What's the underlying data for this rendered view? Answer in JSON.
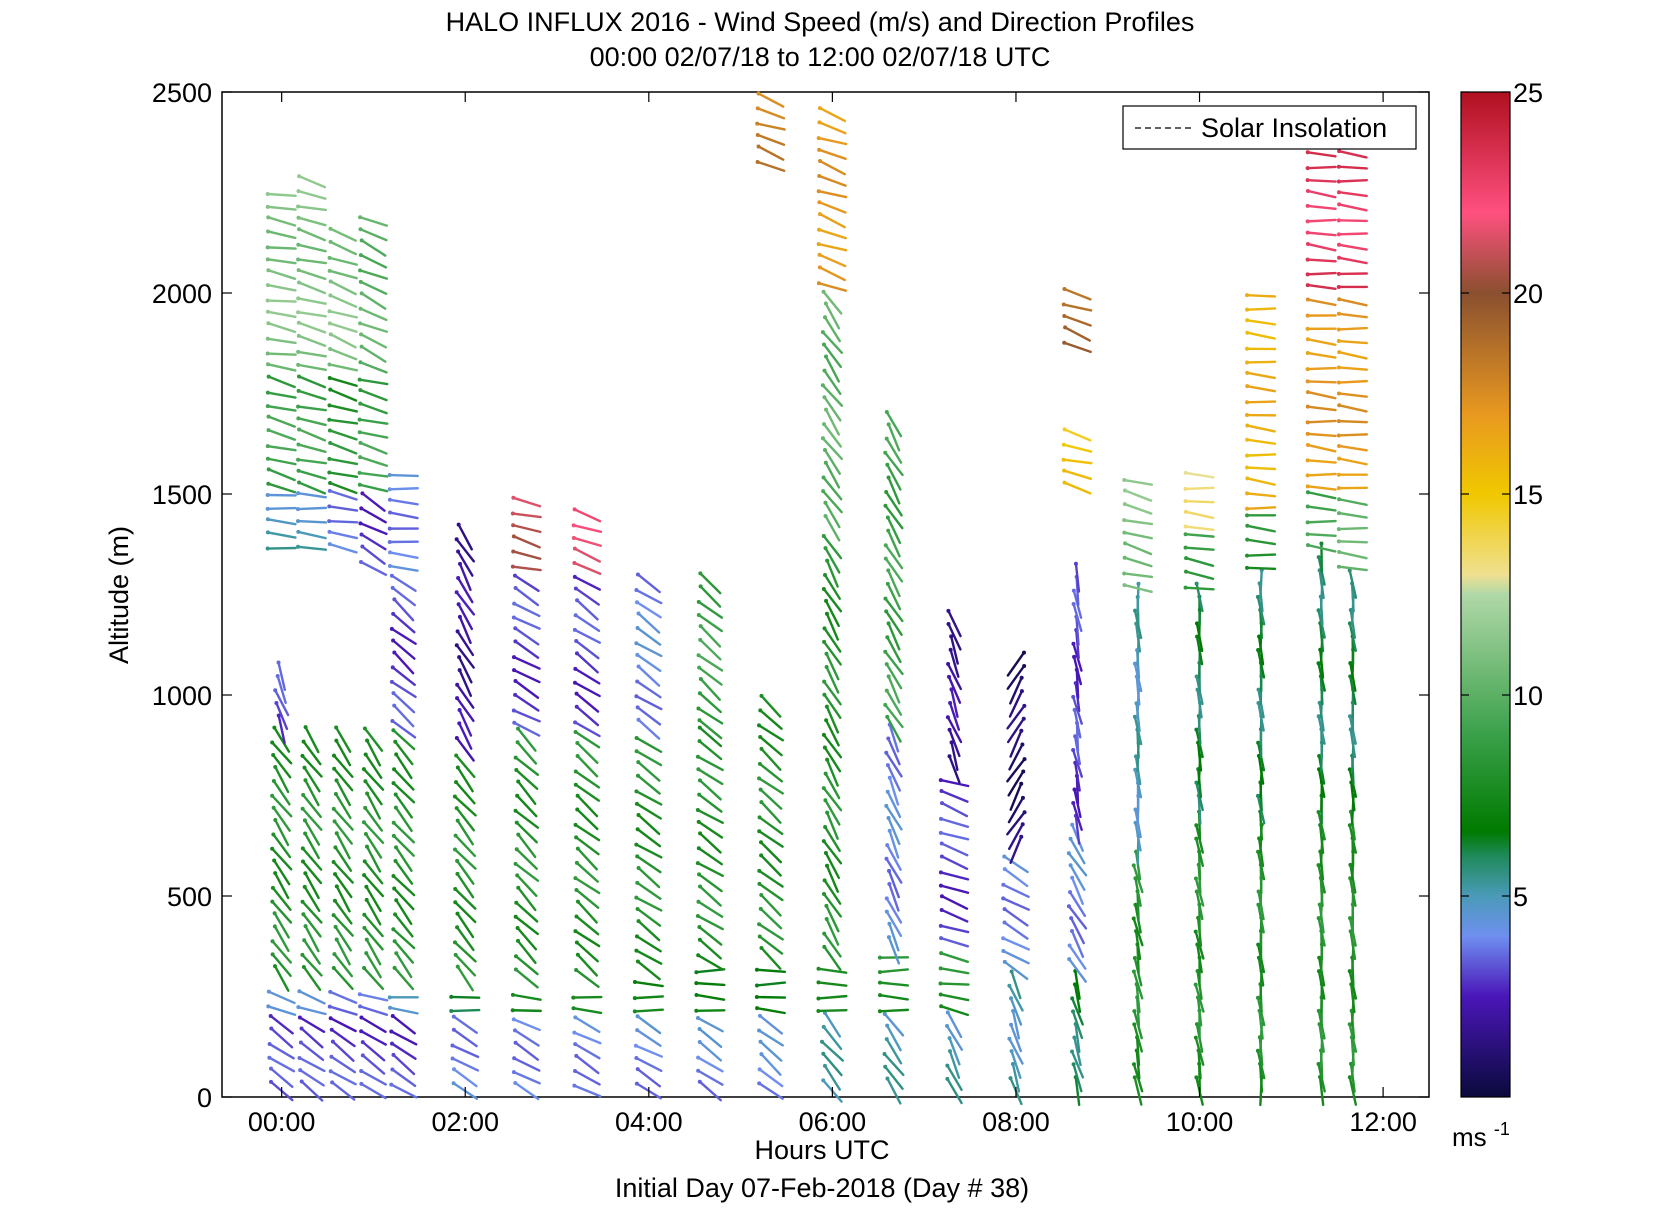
{
  "chart_data": {
    "type": "wind-barb-profile",
    "title": "HALO INFLUX 2016 - Wind Speed (m/s) and Direction Profiles",
    "subtitle": "00:00 02/07/18 to 12:00 02/07/18  UTC",
    "xlabel": "Hours UTC",
    "xlabel2": "Initial Day 07-Feb-2018 (Day # 38)",
    "ylabel": "Altitude (m)",
    "xlim_hours": [
      -0.65,
      12.5
    ],
    "ylim": [
      0,
      2500
    ],
    "x_ticks": [
      {
        "value": 0,
        "label": "00:00"
      },
      {
        "value": 2,
        "label": "02:00"
      },
      {
        "value": 4,
        "label": "04:00"
      },
      {
        "value": 6,
        "label": "06:00"
      },
      {
        "value": 8,
        "label": "08:00"
      },
      {
        "value": 10,
        "label": "10:00"
      },
      {
        "value": 12,
        "label": "12:00"
      }
    ],
    "y_ticks": [
      {
        "value": 0,
        "label": "0"
      },
      {
        "value": 500,
        "label": "500"
      },
      {
        "value": 1000,
        "label": "1000"
      },
      {
        "value": 1500,
        "label": "1500"
      },
      {
        "value": 2000,
        "label": "2000"
      },
      {
        "value": 2500,
        "label": "2500"
      }
    ],
    "legend": {
      "entry": "Solar Insolation",
      "placement": "top-right",
      "style": "dashed"
    },
    "colorbar": {
      "range": [
        0,
        25
      ],
      "ticks": [
        {
          "value": 5,
          "label": "5"
        },
        {
          "value": 10,
          "label": "10"
        },
        {
          "value": 15,
          "label": "15"
        },
        {
          "value": 20,
          "label": "20"
        },
        {
          "value": 25,
          "label": "25"
        }
      ],
      "unit_label": "ms",
      "unit_exponent": "-1",
      "color_stops": [
        {
          "value": 0,
          "color": "#0a0a3c"
        },
        {
          "value": 2.5,
          "color": "#4a16b8"
        },
        {
          "value": 4,
          "color": "#6f8ff0"
        },
        {
          "value": 5,
          "color": "#4a9ab8"
        },
        {
          "value": 6,
          "color": "#1f8a5a"
        },
        {
          "value": 6.6,
          "color": "#007a00"
        },
        {
          "value": 9,
          "color": "#3aa04a"
        },
        {
          "value": 12.5,
          "color": "#b0d8a8"
        },
        {
          "value": 13,
          "color": "#f0e090"
        },
        {
          "value": 15,
          "color": "#f0c800"
        },
        {
          "value": 17,
          "color": "#e89820"
        },
        {
          "value": 20,
          "color": "#8a5030"
        },
        {
          "value": 22,
          "color": "#ff5080"
        },
        {
          "value": 25,
          "color": "#b01020"
        }
      ]
    },
    "profiles_note_units": "each profile: time in hours UTC, barb altitudes in m, wind speed in m/s",
    "profiles": [
      {
        "t": 0.0,
        "top": 2270,
        "bands": [
          [
            0,
            200,
            3,
            -55
          ],
          [
            200,
            280,
            5,
            -65
          ],
          [
            280,
            900,
            8,
            -35
          ],
          [
            900,
            1050,
            3,
            -20
          ],
          [
            1350,
            1500,
            5,
            -85
          ],
          [
            1500,
            1800,
            9,
            -75
          ],
          [
            1800,
            2270,
            11,
            -80
          ]
        ]
      },
      {
        "t": 0.33,
        "top": 2280,
        "bands": [
          [
            0,
            200,
            3,
            -55
          ],
          [
            200,
            280,
            5,
            -70
          ],
          [
            280,
            900,
            8,
            -35
          ],
          [
            1350,
            1500,
            5,
            -85
          ],
          [
            1500,
            1800,
            9,
            -75
          ],
          [
            1800,
            2280,
            11,
            -75
          ]
        ]
      },
      {
        "t": 0.67,
        "top": 2150,
        "bands": [
          [
            0,
            200,
            3,
            -55
          ],
          [
            200,
            280,
            4,
            -75
          ],
          [
            280,
            900,
            8,
            -35
          ],
          [
            1350,
            1500,
            4,
            -80
          ],
          [
            1500,
            1800,
            8,
            -75
          ],
          [
            1800,
            2150,
            11,
            -70
          ]
        ]
      },
      {
        "t": 1.0,
        "top": 2180,
        "bands": [
          [
            0,
            200,
            3,
            -55
          ],
          [
            200,
            280,
            4,
            -80
          ],
          [
            280,
            900,
            8,
            -35
          ],
          [
            1300,
            1500,
            3,
            -60
          ],
          [
            1500,
            1800,
            9,
            -75
          ],
          [
            1800,
            2180,
            10,
            -65
          ]
        ]
      },
      {
        "t": 1.33,
        "top": 1550,
        "bands": [
          [
            0,
            200,
            3,
            -55
          ],
          [
            200,
            280,
            5,
            -85
          ],
          [
            280,
            900,
            8,
            -40
          ],
          [
            900,
            1300,
            3,
            -50
          ],
          [
            1300,
            1550,
            4,
            -85
          ]
        ]
      },
      {
        "t": 2.0,
        "top": 1400,
        "bands": [
          [
            0,
            200,
            4,
            -60
          ],
          [
            200,
            280,
            6,
            -85
          ],
          [
            280,
            850,
            8,
            -40
          ],
          [
            850,
            1400,
            2,
            -30
          ]
        ]
      },
      {
        "t": 2.67,
        "top": 1500,
        "bands": [
          [
            0,
            200,
            4,
            -60
          ],
          [
            200,
            280,
            7,
            -88
          ],
          [
            280,
            900,
            8,
            -45
          ],
          [
            900,
            1300,
            3,
            -60
          ],
          [
            1300,
            1500,
            21,
            -75
          ]
        ]
      },
      {
        "t": 3.33,
        "top": 1450,
        "bands": [
          [
            0,
            200,
            4,
            -60
          ],
          [
            200,
            280,
            7,
            -88
          ],
          [
            280,
            900,
            8,
            -50
          ],
          [
            900,
            1300,
            3,
            -55
          ],
          [
            1300,
            1450,
            22,
            -70
          ]
        ]
      },
      {
        "t": 4.0,
        "top": 1300,
        "bands": [
          [
            0,
            200,
            4,
            -60
          ],
          [
            200,
            300,
            7,
            -88
          ],
          [
            300,
            900,
            8,
            -55
          ],
          [
            900,
            1300,
            4,
            -55
          ]
        ]
      },
      {
        "t": 4.67,
        "top": 1300,
        "bands": [
          [
            0,
            200,
            4,
            -55
          ],
          [
            200,
            320,
            7,
            -88
          ],
          [
            320,
            900,
            8,
            -55
          ],
          [
            900,
            1300,
            9,
            -50
          ]
        ]
      },
      {
        "t": 5.33,
        "top": 2500,
        "bands": [
          [
            0,
            200,
            4,
            -50
          ],
          [
            200,
            330,
            7,
            -88
          ],
          [
            330,
            1000,
            8,
            -50
          ],
          [
            2300,
            2500,
            18,
            -70
          ]
        ]
      },
      {
        "t": 6.0,
        "top": 2450,
        "bands": [
          [
            0,
            200,
            5,
            -40
          ],
          [
            200,
            330,
            8,
            -88
          ],
          [
            330,
            1400,
            8,
            -30
          ],
          [
            1400,
            2000,
            10,
            -35
          ],
          [
            2000,
            2450,
            17,
            -70
          ]
        ]
      },
      {
        "t": 6.67,
        "top": 1700,
        "bands": [
          [
            0,
            200,
            5,
            -35
          ],
          [
            200,
            350,
            8,
            -88
          ],
          [
            350,
            900,
            4,
            -25
          ],
          [
            900,
            1700,
            9,
            -30
          ]
        ]
      },
      {
        "t": 7.33,
        "top": 1200,
        "bands": [
          [
            0,
            200,
            5,
            -25
          ],
          [
            200,
            370,
            8,
            -80
          ],
          [
            370,
            800,
            3,
            -70
          ],
          [
            800,
            1200,
            2,
            -20
          ]
        ]
      },
      {
        "t": 8.0,
        "top": 1100,
        "bands": [
          [
            0,
            300,
            5,
            -20
          ],
          [
            300,
            600,
            4,
            -60
          ],
          [
            600,
            1100,
            1,
            30
          ]
        ]
      },
      {
        "t": 8.67,
        "top": 2000,
        "bands": [
          [
            0,
            300,
            6,
            -15
          ],
          [
            300,
            650,
            4,
            -30
          ],
          [
            650,
            1300,
            3,
            -10
          ],
          [
            1500,
            1650,
            15,
            -75
          ],
          [
            1850,
            2000,
            19,
            -70
          ]
        ]
      },
      {
        "t": 9.33,
        "top": 1550,
        "bands": [
          [
            0,
            600,
            8,
            -10
          ],
          [
            600,
            1250,
            5,
            -5
          ],
          [
            1250,
            1550,
            11,
            -75
          ]
        ]
      },
      {
        "t": 10.0,
        "top": 1550,
        "bands": [
          [
            0,
            700,
            8,
            -8
          ],
          [
            700,
            1250,
            6,
            -5
          ],
          [
            1250,
            1400,
            9,
            -80
          ],
          [
            1400,
            1550,
            13,
            -85
          ]
        ]
      },
      {
        "t": 10.67,
        "top": 2000,
        "bands": [
          [
            0,
            700,
            8,
            -5
          ],
          [
            700,
            1300,
            6,
            -5
          ],
          [
            1300,
            1450,
            8,
            -85
          ],
          [
            1450,
            2000,
            16,
            -85
          ]
        ]
      },
      {
        "t": 11.33,
        "top": 2400,
        "bands": [
          [
            0,
            700,
            8,
            -5
          ],
          [
            700,
            1350,
            6,
            -5
          ],
          [
            1350,
            1500,
            9,
            -85
          ],
          [
            1500,
            2000,
            17,
            -85
          ],
          [
            2000,
            2400,
            23,
            -85
          ]
        ]
      },
      {
        "t": 11.67,
        "top": 2400,
        "bands": [
          [
            0,
            700,
            8,
            -5
          ],
          [
            700,
            1300,
            6,
            -5
          ],
          [
            1300,
            1500,
            10,
            -85
          ],
          [
            1500,
            2000,
            17,
            -85
          ],
          [
            2000,
            2400,
            23,
            -85
          ]
        ]
      }
    ]
  }
}
